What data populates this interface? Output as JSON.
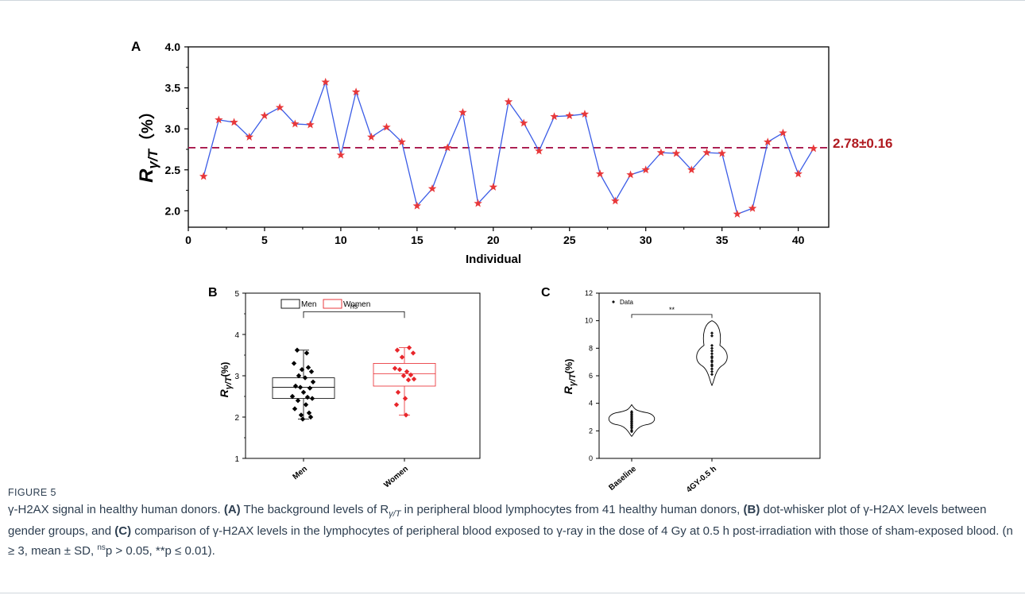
{
  "chart_data": [
    {
      "panel": "A",
      "type": "line",
      "ylabel_main": "R",
      "ylabel_sub": "γ/T",
      "ylabel_unit": "（%）",
      "xlabel": "Individual",
      "xlim": [
        0,
        42
      ],
      "ylim": [
        1.8,
        4.0
      ],
      "xticks": [
        0,
        5,
        10,
        15,
        20,
        25,
        30,
        35,
        40
      ],
      "yticks": [
        2.0,
        2.5,
        3.0,
        3.5,
        4.0
      ],
      "ytick_labels": [
        "2.0",
        "2.5",
        "3.0",
        "3.5",
        "4.0"
      ],
      "x": [
        1,
        2,
        3,
        4,
        5,
        6,
        7,
        8,
        9,
        10,
        11,
        12,
        13,
        14,
        15,
        16,
        17,
        18,
        19,
        20,
        21,
        22,
        23,
        24,
        25,
        26,
        27,
        28,
        29,
        30,
        31,
        32,
        33,
        34,
        35,
        36,
        37,
        38,
        39,
        40,
        41
      ],
      "y": [
        2.42,
        3.11,
        3.08,
        2.9,
        3.16,
        3.26,
        3.06,
        3.05,
        3.57,
        2.68,
        3.45,
        2.9,
        3.02,
        2.84,
        2.06,
        2.27,
        2.77,
        3.2,
        2.09,
        2.29,
        3.33,
        3.07,
        2.73,
        3.15,
        3.16,
        3.18,
        2.45,
        2.12,
        2.44,
        2.5,
        2.71,
        2.7,
        2.5,
        2.71,
        2.7,
        1.96,
        2.03,
        2.84,
        2.95,
        2.45,
        2.76
      ],
      "mean_line": 2.77,
      "mean_label": "2.78±0.16",
      "line_color": "#3b5ce6",
      "marker_color": "#e8383a",
      "mean_color": "#a8154a"
    },
    {
      "panel": "B",
      "type": "box",
      "ylabel_main": "R",
      "ylabel_sub": "γ/T",
      "ylabel_unit": "(%)",
      "categories": [
        "Men",
        "Women"
      ],
      "ylim": [
        1,
        5
      ],
      "yticks": [
        1,
        2,
        3,
        4,
        5
      ],
      "ytick_labels": [
        "1",
        "2",
        "3",
        "4",
        "5"
      ],
      "legend": [
        "Men",
        "Women"
      ],
      "significance": "ns",
      "colors": [
        "#000000",
        "#e8262b"
      ],
      "boxes": [
        {
          "q1": 2.45,
          "median": 2.72,
          "q3": 2.95,
          "whisker_low": 1.95,
          "whisker_high": 3.62
        },
        {
          "q1": 2.75,
          "median": 3.05,
          "q3": 3.3,
          "whisker_low": 2.05,
          "whisker_high": 3.68
        }
      ],
      "points": [
        [
          3.62,
          3.55,
          3.3,
          3.2,
          3.15,
          3.1,
          3.0,
          2.95,
          2.85,
          2.75,
          2.72,
          2.7,
          2.6,
          2.5,
          2.48,
          2.45,
          2.4,
          2.3,
          2.2,
          2.1,
          2.05,
          2.0,
          1.95
        ],
        [
          3.68,
          3.62,
          3.55,
          3.45,
          3.18,
          3.15,
          3.1,
          3.02,
          3.0,
          2.92,
          2.9,
          2.6,
          2.45,
          2.3,
          2.05
        ]
      ]
    },
    {
      "panel": "C",
      "type": "violin",
      "ylabel_main": "R",
      "ylabel_sub": "γ/T",
      "ylabel_unit": "(%)",
      "categories": [
        "Baseline",
        "4GY-0.5 h"
      ],
      "ylim": [
        0,
        12
      ],
      "yticks": [
        0,
        2,
        4,
        6,
        8,
        10,
        12
      ],
      "ytick_labels": [
        "0",
        "2",
        "4",
        "6",
        "8",
        "10",
        "12"
      ],
      "legend": [
        "Data"
      ],
      "significance": "**",
      "violins": [
        {
          "min": 1.6,
          "max": 3.9,
          "center": 2.9
        },
        {
          "min": 5.3,
          "max": 10.0,
          "center": 7.4
        }
      ],
      "points": [
        [
          3.4,
          3.3,
          3.2,
          3.1,
          3.0,
          2.9,
          2.8,
          2.7,
          2.6,
          2.5,
          2.4,
          2.3,
          2.2,
          2.05,
          1.95
        ],
        [
          9.1,
          8.9,
          8.2,
          8.0,
          7.8,
          7.6,
          7.4,
          7.3,
          7.1,
          7.0,
          6.8,
          6.7,
          6.5,
          6.3,
          6.1
        ]
      ]
    }
  ],
  "caption": {
    "figure_label": "FIGURE 5",
    "text_1": "γ-H2AX signal in healthy human donors. ",
    "a_label": "(A)",
    "text_2": " The background levels of R",
    "text_2_sub": "γ/T",
    "text_3": " in peripheral blood lymphocytes from 41 healthy human donors, ",
    "b_label": "(B)",
    "text_4": " dot-whisker plot of γ-H2AX levels between gender groups, and ",
    "c_label": "(C)",
    "text_5": " comparison of γ-H2AX levels in the lymphocytes of peripheral blood exposed to γ-ray in the dose of 4 Gy at 0.5 h post-irradiation with those of sham-exposed blood. (n ≥ 3, mean ± SD, ",
    "ns_sup": "ns",
    "text_6": "p > 0.05, **p ≤ 0.01)."
  }
}
